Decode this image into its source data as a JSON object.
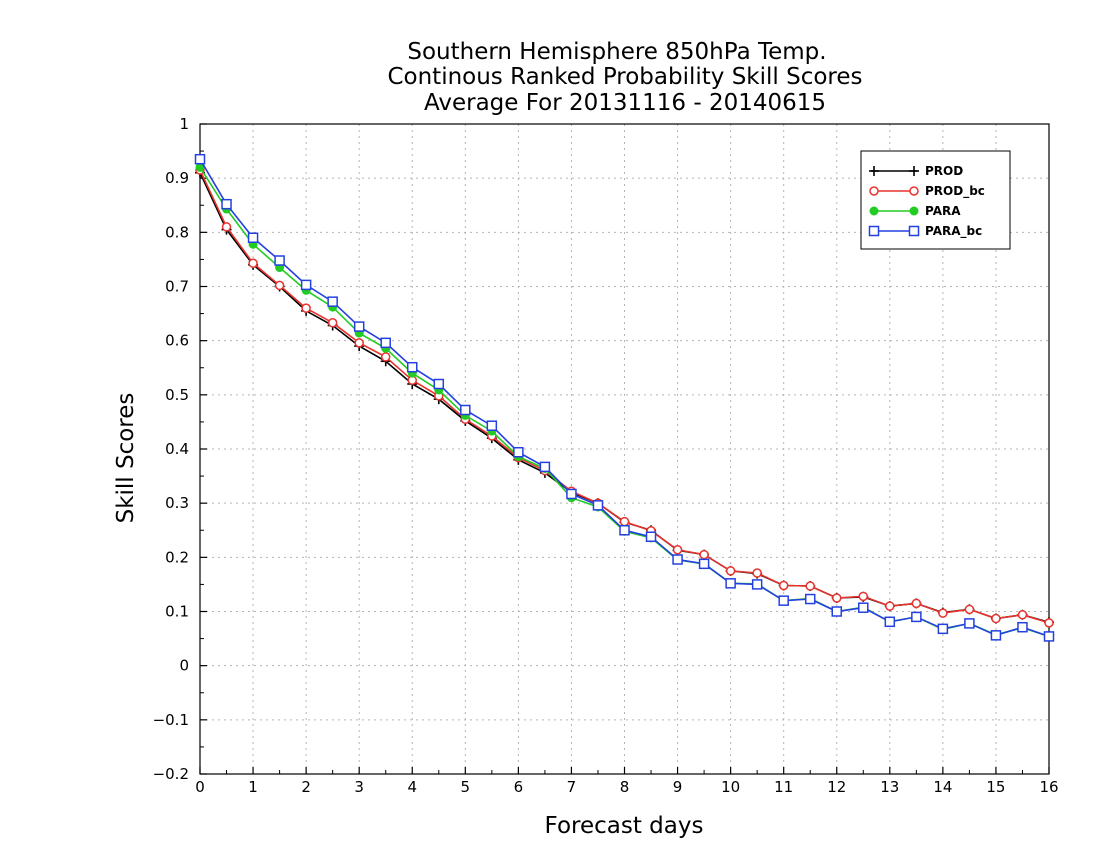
{
  "chart_data": {
    "type": "line",
    "title_lines": [
      "Southern Hemisphere 850hPa Temp.",
      "Continous Ranked Probability Skill Scores",
      "Average For 20131116 - 20140615"
    ],
    "xlabel": "Forecast days",
    "ylabel": "Skill Scores",
    "xlim": [
      0,
      16
    ],
    "ylim": [
      -0.2,
      1
    ],
    "x_ticks": [
      0,
      1,
      2,
      3,
      4,
      5,
      6,
      7,
      8,
      9,
      10,
      11,
      12,
      13,
      14,
      15,
      16
    ],
    "y_ticks": [
      -0.2,
      -0.1,
      0,
      0.1,
      0.2,
      0.3,
      0.4,
      0.5,
      0.6,
      0.7,
      0.8,
      0.9,
      1
    ],
    "x_tick_labels": [
      "0",
      "1",
      "2",
      "3",
      "4",
      "5",
      "6",
      "7",
      "8",
      "9",
      "10",
      "11",
      "12",
      "13",
      "14",
      "15",
      "16"
    ],
    "y_tick_labels": [
      "−0.2",
      "−0.1",
      "0",
      "0.1",
      "0.2",
      "0.3",
      "0.4",
      "0.5",
      "0.6",
      "0.7",
      "0.8",
      "0.9",
      "1"
    ],
    "grid": true,
    "legend_position": "top-right",
    "x": [
      0,
      0.5,
      1,
      1.5,
      2,
      2.5,
      3,
      3.5,
      4,
      4.5,
      5,
      5.5,
      6,
      6.5,
      7,
      7.5,
      8,
      8.5,
      9,
      9.5,
      10,
      10.5,
      11,
      11.5,
      12,
      12.5,
      13,
      13.5,
      14,
      14.5,
      15,
      15.5,
      16
    ],
    "series": [
      {
        "name": "PROD",
        "color": "#000000",
        "marker": "plus",
        "values": [
          0.91,
          0.805,
          0.74,
          0.7,
          0.655,
          0.628,
          0.59,
          0.562,
          0.52,
          0.492,
          0.452,
          0.42,
          0.38,
          0.356,
          0.32,
          0.3,
          0.265,
          0.25,
          0.213,
          0.205,
          0.175,
          0.17,
          0.148,
          0.147,
          0.125,
          0.127,
          0.11,
          0.115,
          0.098,
          0.104,
          0.087,
          0.094,
          0.08
        ]
      },
      {
        "name": "PROD_bc",
        "color": "#e8332e",
        "marker": "open-circle",
        "values": [
          0.915,
          0.81,
          0.743,
          0.702,
          0.66,
          0.633,
          0.596,
          0.57,
          0.527,
          0.498,
          0.455,
          0.424,
          0.384,
          0.36,
          0.322,
          0.3,
          0.266,
          0.249,
          0.214,
          0.205,
          0.175,
          0.171,
          0.148,
          0.147,
          0.125,
          0.128,
          0.11,
          0.115,
          0.097,
          0.104,
          0.087,
          0.094,
          0.079
        ]
      },
      {
        "name": "PARA",
        "color": "#22cc22",
        "marker": "filled-circle",
        "values": [
          0.92,
          0.843,
          0.778,
          0.735,
          0.693,
          0.662,
          0.614,
          0.586,
          0.54,
          0.509,
          0.462,
          0.433,
          0.386,
          0.364,
          0.31,
          0.293,
          0.248,
          0.236,
          0.195,
          0.188,
          0.152,
          0.151,
          0.12,
          0.124,
          0.1,
          0.108,
          0.081,
          0.09,
          0.067,
          0.078,
          0.057,
          0.07,
          0.054
        ]
      },
      {
        "name": "PARA_bc",
        "color": "#2540e0",
        "marker": "open-square",
        "values": [
          0.935,
          0.852,
          0.79,
          0.748,
          0.703,
          0.672,
          0.626,
          0.596,
          0.551,
          0.52,
          0.472,
          0.443,
          0.394,
          0.367,
          0.317,
          0.296,
          0.25,
          0.238,
          0.196,
          0.188,
          0.152,
          0.15,
          0.12,
          0.123,
          0.1,
          0.107,
          0.081,
          0.09,
          0.068,
          0.078,
          0.056,
          0.071,
          0.054
        ]
      }
    ]
  }
}
